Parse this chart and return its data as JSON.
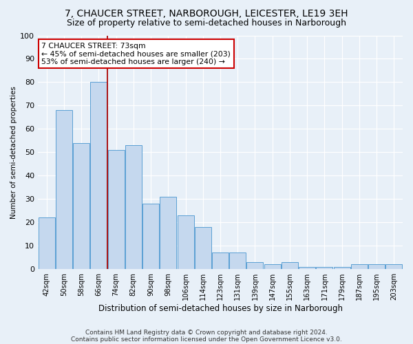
{
  "title": "7, CHAUCER STREET, NARBOROUGH, LEICESTER, LE19 3EH",
  "subtitle": "Size of property relative to semi-detached houses in Narborough",
  "xlabel": "Distribution of semi-detached houses by size in Narborough",
  "ylabel": "Number of semi-detached properties",
  "categories": [
    "42sqm",
    "50sqm",
    "58sqm",
    "66sqm",
    "74sqm",
    "82sqm",
    "90sqm",
    "98sqm",
    "106sqm",
    "114sqm",
    "123sqm",
    "131sqm",
    "139sqm",
    "147sqm",
    "155sqm",
    "163sqm",
    "171sqm",
    "179sqm",
    "187sqm",
    "195sqm",
    "203sqm"
  ],
  "values": [
    22,
    68,
    54,
    80,
    51,
    53,
    28,
    31,
    23,
    18,
    7,
    7,
    3,
    2,
    3,
    1,
    1,
    1,
    2,
    2,
    2
  ],
  "bar_color": "#c5d8ee",
  "bar_edge_color": "#5a9fd4",
  "background_color": "#e8f0f8",
  "grid_color": "#ffffff",
  "vline_x": 3.5,
  "vline_color": "#aa0000",
  "annotation_text": "7 CHAUCER STREET: 73sqm\n← 45% of semi-detached houses are smaller (203)\n53% of semi-detached houses are larger (240) →",
  "annotation_box_color": "#ffffff",
  "annotation_box_edge": "#cc0000",
  "footer1": "Contains HM Land Registry data © Crown copyright and database right 2024.",
  "footer2": "Contains public sector information licensed under the Open Government Licence v3.0.",
  "ylim": [
    0,
    100
  ],
  "yticks": [
    0,
    10,
    20,
    30,
    40,
    50,
    60,
    70,
    80,
    90,
    100
  ],
  "title_fontsize": 10,
  "subtitle_fontsize": 9,
  "title_fontweight": "normal"
}
